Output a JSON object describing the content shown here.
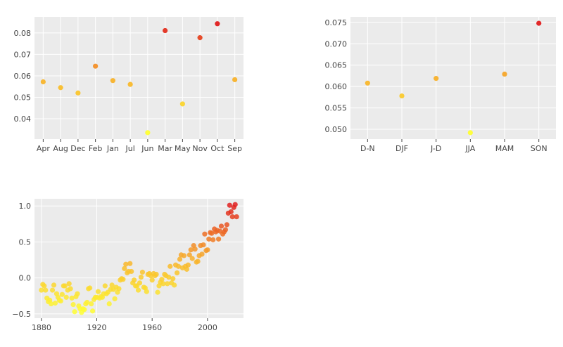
{
  "chart_data": [
    {
      "type": "scatter",
      "title": "",
      "xlabel": "",
      "ylabel": "",
      "categories": [
        "Apr",
        "Aug",
        "Dec",
        "Feb",
        "Jan",
        "Jul",
        "Jun",
        "Mar",
        "May",
        "Nov",
        "Oct",
        "Sep"
      ],
      "values": [
        0.0572,
        0.0545,
        0.052,
        0.0645,
        0.0578,
        0.056,
        0.0335,
        0.0811,
        0.0469,
        0.0778,
        0.0843,
        0.0582
      ],
      "yticks": [
        0.04,
        0.05,
        0.06,
        0.07,
        0.08
      ],
      "ylim": [
        0.0305,
        0.0875
      ],
      "grid": true,
      "colorscale": [
        "#ffff33",
        "#f8b02b",
        "#e01e1e"
      ]
    },
    {
      "type": "scatter",
      "title": "",
      "xlabel": "",
      "ylabel": "",
      "categories": [
        "D-N",
        "DJF",
        "J-D",
        "JJA",
        "MAM",
        "SON"
      ],
      "values": [
        0.0608,
        0.0578,
        0.0619,
        0.0492,
        0.0629,
        0.0748
      ],
      "yticks": [
        0.05,
        0.055,
        0.06,
        0.065,
        0.07,
        0.075
      ],
      "ylim": [
        0.0477,
        0.0763
      ],
      "grid": true,
      "colorscale": [
        "#ffff33",
        "#f8b02b",
        "#e01e1e"
      ]
    },
    {
      "type": "scatter",
      "title": "",
      "xlabel": "",
      "ylabel": "",
      "x": [
        1880,
        1881,
        1882,
        1883,
        1884,
        1885,
        1886,
        1887,
        1888,
        1889,
        1890,
        1891,
        1892,
        1893,
        1894,
        1895,
        1896,
        1897,
        1898,
        1899,
        1900,
        1901,
        1902,
        1903,
        1904,
        1905,
        1906,
        1907,
        1908,
        1909,
        1910,
        1911,
        1912,
        1913,
        1914,
        1915,
        1916,
        1917,
        1918,
        1919,
        1920,
        1921,
        1922,
        1923,
        1924,
        1925,
        1926,
        1927,
        1928,
        1929,
        1930,
        1931,
        1932,
        1933,
        1934,
        1935,
        1936,
        1937,
        1938,
        1939,
        1940,
        1941,
        1942,
        1943,
        1944,
        1945,
        1946,
        1947,
        1948,
        1949,
        1950,
        1951,
        1952,
        1953,
        1954,
        1955,
        1956,
        1957,
        1958,
        1959,
        1960,
        1961,
        1962,
        1963,
        1964,
        1965,
        1966,
        1967,
        1968,
        1969,
        1970,
        1971,
        1972,
        1973,
        1974,
        1975,
        1976,
        1977,
        1978,
        1979,
        1980,
        1981,
        1982,
        1983,
        1984,
        1985,
        1986,
        1987,
        1988,
        1989,
        1990,
        1991,
        1992,
        1993,
        1994,
        1995,
        1996,
        1997,
        1998,
        1999,
        2000,
        2001,
        2002,
        2003,
        2004,
        2005,
        2006,
        2007,
        2008,
        2009,
        2010,
        2011,
        2012,
        2013,
        2014,
        2015,
        2016,
        2017,
        2018,
        2019,
        2020,
        2021
      ],
      "y": [
        -0.17,
        -0.09,
        -0.11,
        -0.17,
        -0.28,
        -0.33,
        -0.31,
        -0.36,
        -0.17,
        -0.1,
        -0.35,
        -0.22,
        -0.27,
        -0.31,
        -0.32,
        -0.23,
        -0.11,
        -0.11,
        -0.27,
        -0.17,
        -0.08,
        -0.15,
        -0.28,
        -0.37,
        -0.47,
        -0.26,
        -0.22,
        -0.39,
        -0.43,
        -0.48,
        -0.43,
        -0.44,
        -0.36,
        -0.34,
        -0.15,
        -0.14,
        -0.36,
        -0.46,
        -0.3,
        -0.27,
        -0.27,
        -0.19,
        -0.28,
        -0.26,
        -0.27,
        -0.22,
        -0.11,
        -0.22,
        -0.2,
        -0.36,
        -0.16,
        -0.1,
        -0.16,
        -0.29,
        -0.13,
        -0.2,
        -0.15,
        -0.03,
        -0.01,
        -0.02,
        0.13,
        0.19,
        0.07,
        0.09,
        0.2,
        0.09,
        -0.07,
        -0.03,
        -0.11,
        -0.11,
        -0.17,
        -0.07,
        0.01,
        0.08,
        -0.13,
        -0.14,
        -0.19,
        0.05,
        0.06,
        0.03,
        -0.03,
        0.06,
        0.03,
        0.05,
        -0.2,
        -0.11,
        -0.06,
        -0.02,
        -0.08,
        0.05,
        0.03,
        -0.08,
        0.01,
        0.16,
        -0.07,
        -0.01,
        -0.1,
        0.18,
        0.07,
        0.16,
        0.26,
        0.32,
        0.14,
        0.31,
        0.16,
        0.12,
        0.18,
        0.32,
        0.39,
        0.27,
        0.45,
        0.4,
        0.22,
        0.23,
        0.31,
        0.45,
        0.33,
        0.46,
        0.61,
        0.38,
        0.39,
        0.54,
        0.63,
        0.62,
        0.53,
        0.68,
        0.64,
        0.66,
        0.54,
        0.65,
        0.72,
        0.61,
        0.64,
        0.67,
        0.74,
        0.9,
        1.01,
        0.92,
        0.85,
        0.98,
        1.02,
        0.85
      ],
      "xticks": [
        1880,
        1920,
        1960,
        2000
      ],
      "yticks": [
        -0.5,
        0,
        0.5,
        1.0
      ],
      "ytick_labels": [
        "−0.5",
        "0.0",
        "0.5",
        "1.0"
      ],
      "xlim": [
        1875,
        2026
      ],
      "ylim": [
        -0.56,
        1.1
      ],
      "grid": true,
      "colorscale": [
        "#ffff33",
        "#f8b02b",
        "#e01e1e"
      ]
    }
  ]
}
